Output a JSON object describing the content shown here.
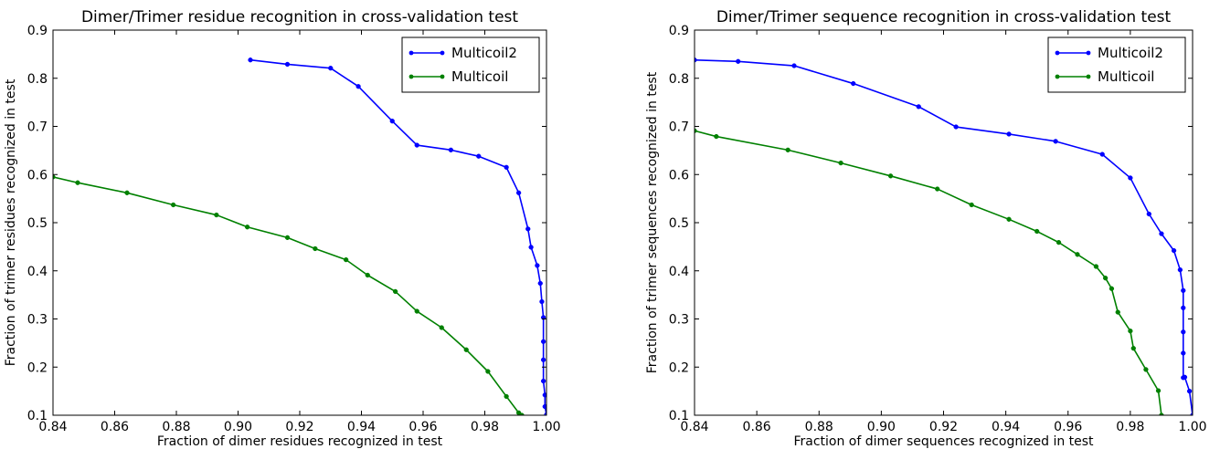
{
  "chart_data": [
    {
      "type": "line",
      "title": "Dimer/Trimer residue recognition in cross-validation test",
      "xlabel": "Fraction of dimer residues recognized in test",
      "ylabel": "Fraction of trimer residues recognized in test",
      "xlim": [
        0.84,
        1.0
      ],
      "ylim": [
        0.1,
        0.9
      ],
      "xticks": [
        0.84,
        0.86,
        0.88,
        0.9,
        0.92,
        0.94,
        0.96,
        0.98,
        1.0
      ],
      "yticks": [
        0.1,
        0.2,
        0.3,
        0.4,
        0.5,
        0.6,
        0.7,
        0.8,
        0.9
      ],
      "xtick_labels": [
        "0.84",
        "0.86",
        "0.88",
        "0.90",
        "0.92",
        "0.94",
        "0.96",
        "0.98",
        "1.00"
      ],
      "ytick_labels": [
        "0.1",
        "0.2",
        "0.3",
        "0.4",
        "0.5",
        "0.6",
        "0.7",
        "0.8",
        "0.9"
      ],
      "grid": false,
      "legend_position": "top-right",
      "series": [
        {
          "name": "Multicoil2",
          "color": "#0000ff",
          "x": [
            0.904,
            0.916,
            0.93,
            0.939,
            0.95,
            0.958,
            0.969,
            0.978,
            0.987,
            0.991,
            0.994,
            0.995,
            0.997,
            0.998,
            0.9985,
            0.999,
            0.999,
            0.999,
            0.999,
            0.9995,
            0.9995,
            1.0
          ],
          "y": [
            0.838,
            0.829,
            0.821,
            0.783,
            0.711,
            0.661,
            0.651,
            0.638,
            0.615,
            0.562,
            0.487,
            0.449,
            0.411,
            0.374,
            0.336,
            0.303,
            0.253,
            0.215,
            0.171,
            0.142,
            0.118,
            0.101
          ]
        },
        {
          "name": "Multicoil",
          "color": "#008000",
          "x": [
            0.84,
            0.848,
            0.864,
            0.879,
            0.893,
            0.903,
            0.916,
            0.925,
            0.935,
            0.942,
            0.951,
            0.958,
            0.966,
            0.974,
            0.981,
            0.987,
            0.991,
            0.992
          ],
          "y": [
            0.595,
            0.583,
            0.562,
            0.537,
            0.516,
            0.491,
            0.469,
            0.446,
            0.423,
            0.391,
            0.357,
            0.316,
            0.282,
            0.236,
            0.191,
            0.139,
            0.105,
            0.1
          ]
        }
      ]
    },
    {
      "type": "line",
      "title": "Dimer/Trimer sequence recognition in cross-validation test",
      "xlabel": "Fraction of dimer sequences recognized in test",
      "ylabel": "Fraction of trimer sequences recognized in test",
      "xlim": [
        0.84,
        1.0
      ],
      "ylim": [
        0.1,
        0.9
      ],
      "xticks": [
        0.84,
        0.86,
        0.88,
        0.9,
        0.92,
        0.94,
        0.96,
        0.98,
        1.0
      ],
      "yticks": [
        0.1,
        0.2,
        0.3,
        0.4,
        0.5,
        0.6,
        0.7,
        0.8,
        0.9
      ],
      "xtick_labels": [
        "0.84",
        "0.86",
        "0.88",
        "0.90",
        "0.92",
        "0.94",
        "0.96",
        "0.98",
        "1.00"
      ],
      "ytick_labels": [
        "0.1",
        "0.2",
        "0.3",
        "0.4",
        "0.5",
        "0.6",
        "0.7",
        "0.8",
        "0.9"
      ],
      "grid": false,
      "legend_position": "top-right",
      "series": [
        {
          "name": "Multicoil2",
          "color": "#0000ff",
          "x": [
            0.84,
            0.854,
            0.872,
            0.891,
            0.912,
            0.924,
            0.941,
            0.956,
            0.971,
            0.98,
            0.986,
            0.99,
            0.994,
            0.996,
            0.997,
            0.997,
            0.997,
            0.997,
            0.997,
            0.9975,
            0.999,
            1.0
          ],
          "y": [
            0.838,
            0.835,
            0.826,
            0.789,
            0.741,
            0.699,
            0.684,
            0.669,
            0.642,
            0.593,
            0.518,
            0.477,
            0.442,
            0.402,
            0.359,
            0.323,
            0.273,
            0.229,
            0.178,
            0.179,
            0.15,
            0.1
          ]
        },
        {
          "name": "Multicoil",
          "color": "#008000",
          "x": [
            0.84,
            0.847,
            0.87,
            0.887,
            0.903,
            0.918,
            0.929,
            0.941,
            0.95,
            0.957,
            0.963,
            0.969,
            0.972,
            0.974,
            0.976,
            0.98,
            0.981,
            0.985,
            0.989,
            0.99
          ],
          "y": [
            0.691,
            0.679,
            0.651,
            0.624,
            0.597,
            0.57,
            0.537,
            0.507,
            0.482,
            0.459,
            0.434,
            0.409,
            0.385,
            0.363,
            0.314,
            0.275,
            0.239,
            0.195,
            0.151,
            0.1
          ]
        }
      ]
    }
  ]
}
